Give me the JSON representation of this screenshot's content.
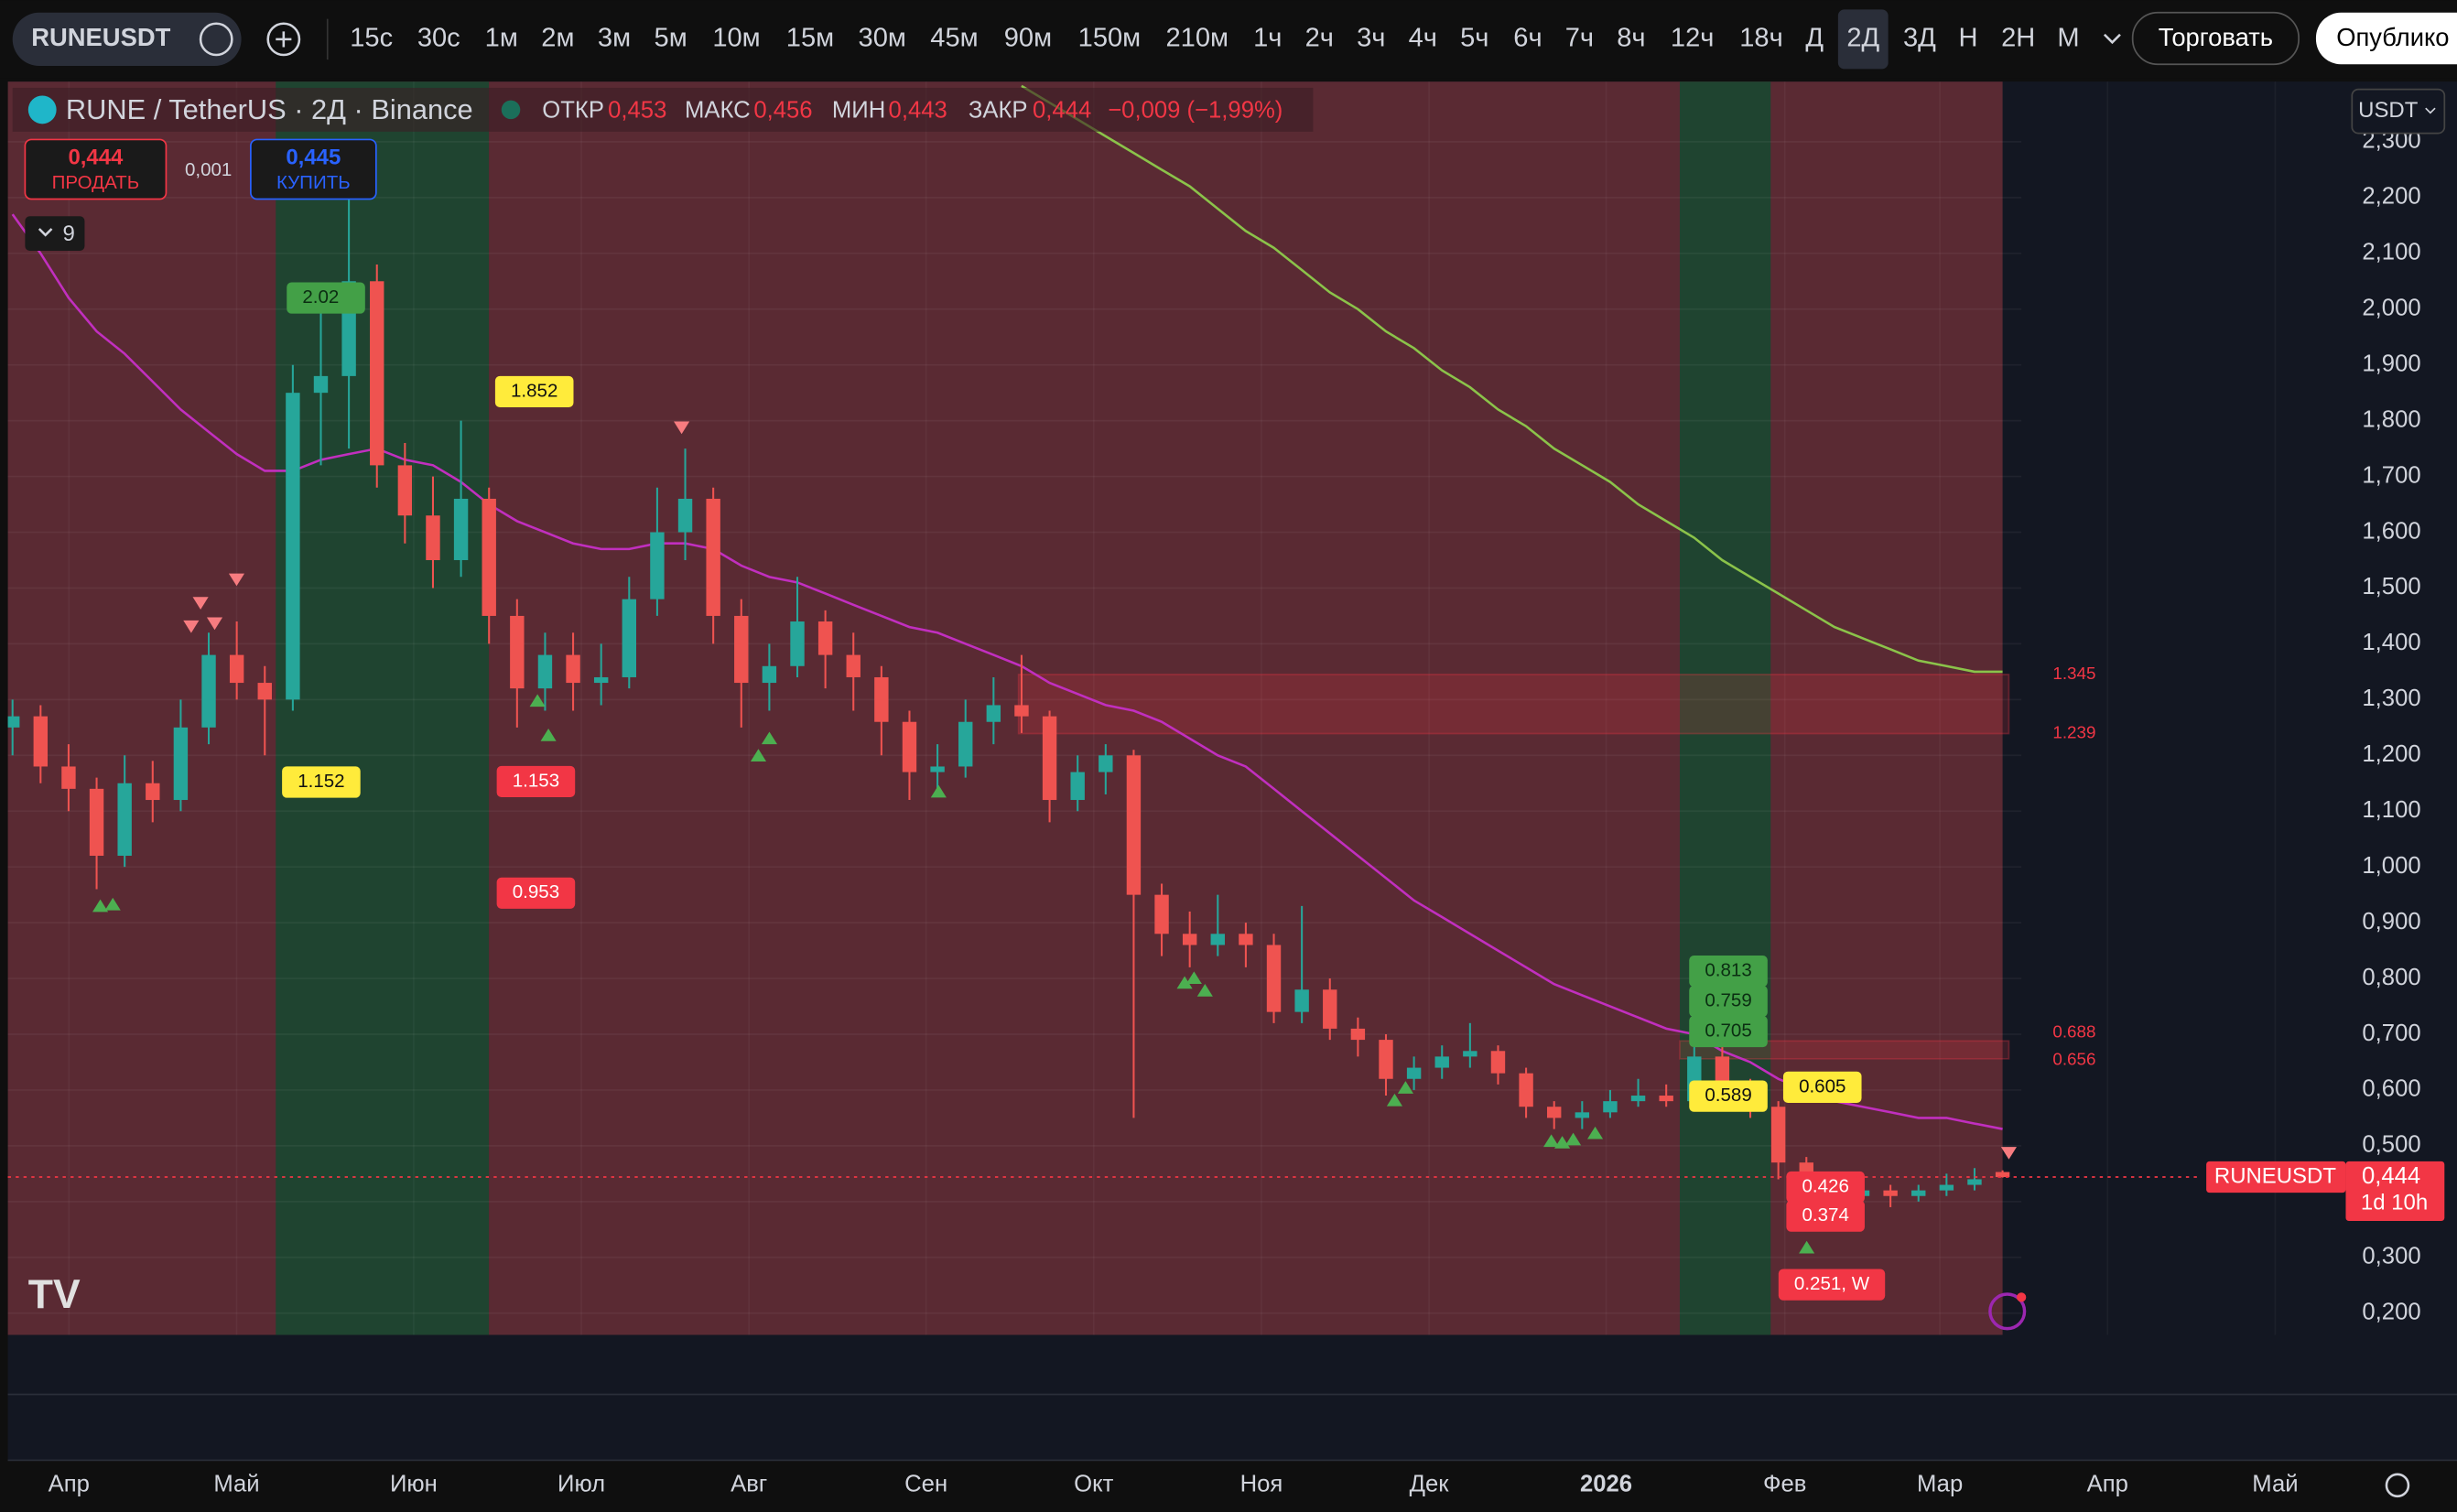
{
  "toolbar": {
    "symbol": "RUNEUSDT",
    "timeframes": [
      "15с",
      "30с",
      "1м",
      "2м",
      "3м",
      "5м",
      "10м",
      "15м",
      "30м",
      "45м",
      "90м",
      "150м",
      "210м",
      "1ч",
      "2ч",
      "3ч",
      "4ч",
      "5ч",
      "6ч",
      "7ч",
      "8ч",
      "12ч",
      "18ч",
      "Д",
      "2Д",
      "3Д",
      "Н",
      "2Н",
      "М"
    ],
    "active": "2Д",
    "trade": "Торговать",
    "publish": "Опублико"
  },
  "legend": {
    "title": "RUNE / TetherUS · 2Д · Binance",
    "open_label": "ОТКР",
    "open": "0,453",
    "high_label": "МАКС",
    "high": "0,456",
    "low_label": "МИН",
    "low": "0,443",
    "close_label": "ЗАКР",
    "close": "0,444",
    "change": "−0,009 (−1,99%)"
  },
  "order": {
    "sell_price": "0,444",
    "sell": "ПРОДАТЬ",
    "spread": "0,001",
    "buy_price": "0,445",
    "buy": "КУПИТЬ"
  },
  "indicators_count": 9,
  "currency": "USDT",
  "price_tag": {
    "symbol": "RUNEUSDT",
    "price": "0,444",
    "countdown": "1d 10h"
  },
  "chart_data": {
    "type": "candlestick",
    "candles": [
      [
        1.25,
        1.3,
        1.2,
        1.27
      ],
      [
        1.27,
        1.29,
        1.15,
        1.18
      ],
      [
        1.18,
        1.22,
        1.1,
        1.14
      ],
      [
        1.14,
        1.16,
        0.96,
        1.02
      ],
      [
        1.02,
        1.2,
        1.0,
        1.15
      ],
      [
        1.15,
        1.19,
        1.08,
        1.12
      ],
      [
        1.12,
        1.3,
        1.1,
        1.25
      ],
      [
        1.25,
        1.42,
        1.22,
        1.38
      ],
      [
        1.38,
        1.44,
        1.3,
        1.33
      ],
      [
        1.33,
        1.36,
        1.2,
        1.3
      ],
      [
        1.3,
        1.9,
        1.28,
        1.85
      ],
      [
        1.85,
        2.02,
        1.72,
        1.88
      ],
      [
        1.88,
        2.2,
        1.75,
        2.05
      ],
      [
        2.05,
        2.08,
        1.68,
        1.72
      ],
      [
        1.72,
        1.76,
        1.58,
        1.63
      ],
      [
        1.63,
        1.7,
        1.5,
        1.55
      ],
      [
        1.55,
        1.8,
        1.52,
        1.66
      ],
      [
        1.66,
        1.68,
        1.4,
        1.45
      ],
      [
        1.45,
        1.48,
        1.25,
        1.32
      ],
      [
        1.32,
        1.42,
        1.28,
        1.38
      ],
      [
        1.38,
        1.42,
        1.28,
        1.33
      ],
      [
        1.33,
        1.4,
        1.29,
        1.34
      ],
      [
        1.34,
        1.52,
        1.32,
        1.48
      ],
      [
        1.48,
        1.68,
        1.45,
        1.6
      ],
      [
        1.6,
        1.75,
        1.55,
        1.66
      ],
      [
        1.66,
        1.68,
        1.4,
        1.45
      ],
      [
        1.45,
        1.48,
        1.25,
        1.33
      ],
      [
        1.33,
        1.4,
        1.28,
        1.36
      ],
      [
        1.36,
        1.52,
        1.34,
        1.44
      ],
      [
        1.44,
        1.46,
        1.32,
        1.38
      ],
      [
        1.38,
        1.42,
        1.28,
        1.34
      ],
      [
        1.34,
        1.36,
        1.2,
        1.26
      ],
      [
        1.26,
        1.28,
        1.12,
        1.17
      ],
      [
        1.17,
        1.22,
        1.14,
        1.18
      ],
      [
        1.18,
        1.3,
        1.16,
        1.26
      ],
      [
        1.26,
        1.34,
        1.22,
        1.29
      ],
      [
        1.29,
        1.38,
        1.24,
        1.27
      ],
      [
        1.27,
        1.28,
        1.08,
        1.12
      ],
      [
        1.12,
        1.2,
        1.1,
        1.17
      ],
      [
        1.17,
        1.22,
        1.13,
        1.2
      ],
      [
        1.2,
        1.21,
        0.55,
        0.95
      ],
      [
        0.95,
        0.97,
        0.84,
        0.88
      ],
      [
        0.88,
        0.92,
        0.82,
        0.86
      ],
      [
        0.86,
        0.95,
        0.84,
        0.88
      ],
      [
        0.88,
        0.9,
        0.82,
        0.86
      ],
      [
        0.86,
        0.88,
        0.72,
        0.74
      ],
      [
        0.74,
        0.93,
        0.72,
        0.78
      ],
      [
        0.78,
        0.8,
        0.69,
        0.71
      ],
      [
        0.71,
        0.73,
        0.66,
        0.69
      ],
      [
        0.69,
        0.7,
        0.59,
        0.62
      ],
      [
        0.62,
        0.66,
        0.6,
        0.64
      ],
      [
        0.64,
        0.68,
        0.62,
        0.66
      ],
      [
        0.66,
        0.72,
        0.64,
        0.67
      ],
      [
        0.67,
        0.68,
        0.61,
        0.63
      ],
      [
        0.63,
        0.64,
        0.55,
        0.57
      ],
      [
        0.57,
        0.58,
        0.53,
        0.55
      ],
      [
        0.55,
        0.58,
        0.53,
        0.56
      ],
      [
        0.56,
        0.6,
        0.55,
        0.58
      ],
      [
        0.58,
        0.62,
        0.57,
        0.59
      ],
      [
        0.59,
        0.61,
        0.57,
        0.58
      ],
      [
        0.58,
        0.7,
        0.57,
        0.66
      ],
      [
        0.66,
        0.68,
        0.58,
        0.6
      ],
      [
        0.6,
        0.62,
        0.55,
        0.57
      ],
      [
        0.57,
        0.58,
        0.44,
        0.47
      ],
      [
        0.47,
        0.48,
        0.37,
        0.43
      ],
      [
        0.43,
        0.45,
        0.39,
        0.41
      ],
      [
        0.41,
        0.43,
        0.4,
        0.42
      ],
      [
        0.42,
        0.43,
        0.39,
        0.41
      ],
      [
        0.41,
        0.43,
        0.4,
        0.42
      ],
      [
        0.42,
        0.45,
        0.41,
        0.43
      ],
      [
        0.43,
        0.46,
        0.42,
        0.44
      ],
      [
        0.453,
        0.456,
        0.443,
        0.444
      ]
    ],
    "up_color": "#26a69a",
    "down_color": "#ef5350",
    "series": [
      {
        "color": "#c12fbf",
        "values": [
          2.17,
          2.1,
          2.02,
          1.96,
          1.92,
          1.87,
          1.82,
          1.78,
          1.74,
          1.71,
          1.71,
          1.73,
          1.74,
          1.75,
          1.73,
          1.72,
          1.69,
          1.65,
          1.62,
          1.6,
          1.58,
          1.57,
          1.57,
          1.58,
          1.58,
          1.57,
          1.54,
          1.52,
          1.51,
          1.49,
          1.47,
          1.45,
          1.43,
          1.42,
          1.4,
          1.38,
          1.36,
          1.33,
          1.31,
          1.29,
          1.28,
          1.26,
          1.23,
          1.2,
          1.18,
          1.14,
          1.1,
          1.06,
          1.02,
          0.98,
          0.94,
          0.91,
          0.88,
          0.85,
          0.82,
          0.79,
          0.77,
          0.75,
          0.73,
          0.71,
          0.7,
          0.67,
          0.65,
          0.62,
          0.6,
          0.58,
          0.57,
          0.56,
          0.55,
          0.55,
          0.54,
          0.53
        ]
      },
      {
        "color": "#8bc34a",
        "values": [
          null,
          null,
          null,
          null,
          null,
          null,
          null,
          null,
          null,
          null,
          null,
          null,
          null,
          null,
          null,
          null,
          null,
          null,
          null,
          null,
          null,
          null,
          null,
          null,
          null,
          null,
          null,
          null,
          null,
          null,
          null,
          null,
          null,
          null,
          null,
          null,
          2.4,
          2.37,
          2.34,
          2.31,
          2.28,
          2.25,
          2.22,
          2.18,
          2.14,
          2.11,
          2.07,
          2.03,
          2.0,
          1.96,
          1.93,
          1.89,
          1.86,
          1.82,
          1.79,
          1.75,
          1.72,
          1.69,
          1.65,
          1.62,
          1.59,
          1.55,
          1.52,
          1.49,
          1.46,
          1.43,
          1.41,
          1.39,
          1.37,
          1.36,
          1.35,
          1.35
        ]
      }
    ],
    "bands": [
      {
        "top": 1.345,
        "bottom": 1.239
      },
      {
        "top": 0.688,
        "bottom": 0.656
      }
    ],
    "tags": [
      {
        "value": 2.02,
        "style": "green"
      },
      {
        "value": 1.852,
        "style": "yellow"
      },
      {
        "value": 1.152,
        "style": "yellow"
      },
      {
        "value": 1.153,
        "style": "red"
      },
      {
        "value": 0.953,
        "style": "red"
      },
      {
        "value": 0.813,
        "style": "green"
      },
      {
        "value": 0.759,
        "style": "green"
      },
      {
        "value": 0.705,
        "style": "green"
      },
      {
        "value": 0.605,
        "style": "yellow"
      },
      {
        "value": 0.589,
        "style": "yellow"
      },
      {
        "value": 0.426,
        "style": "red"
      },
      {
        "value": 0.374,
        "style": "red"
      },
      {
        "value": 0.251,
        "label": "0.251, W",
        "style": "red"
      }
    ],
    "x_labels": [
      "Апр",
      "Май",
      "Июн",
      "Июл",
      "Авг",
      "Сен",
      "Окт",
      "Ноя",
      "Дек",
      "2026",
      "Фев",
      "Мар",
      "Апр",
      "Май"
    ],
    "ylim": [
      0.161,
      2.408
    ],
    "yticks": [
      {
        "value": 0.2,
        "label": "0,200"
      },
      {
        "value": 0.3,
        "label": "0,300"
      },
      {
        "value": 0.4,
        "label": "0,400"
      },
      {
        "value": 0.5,
        "label": "0,500"
      },
      {
        "value": 0.6,
        "label": "0,600"
      },
      {
        "value": 0.7,
        "label": "0,700"
      },
      {
        "value": 0.8,
        "label": "0,800"
      },
      {
        "value": 0.9,
        "label": "0,900"
      },
      {
        "value": 1.0,
        "label": "1,000"
      },
      {
        "value": 1.1,
        "label": "1,100"
      },
      {
        "value": 1.2,
        "label": "1,200"
      },
      {
        "value": 1.3,
        "label": "1,300"
      },
      {
        "value": 1.4,
        "label": "1,400"
      },
      {
        "value": 1.5,
        "label": "1,500"
      },
      {
        "value": 1.6,
        "label": "1,600"
      },
      {
        "value": 1.7,
        "label": "1,700"
      },
      {
        "value": 1.8,
        "label": "1,800"
      },
      {
        "value": 1.9,
        "label": "1,900"
      },
      {
        "value": 2.0,
        "label": "2,000"
      },
      {
        "value": 2.1,
        "label": "2,100"
      },
      {
        "value": 2.2,
        "label": "2,200"
      },
      {
        "value": 2.3,
        "label": "2,300"
      }
    ],
    "grid": true
  }
}
